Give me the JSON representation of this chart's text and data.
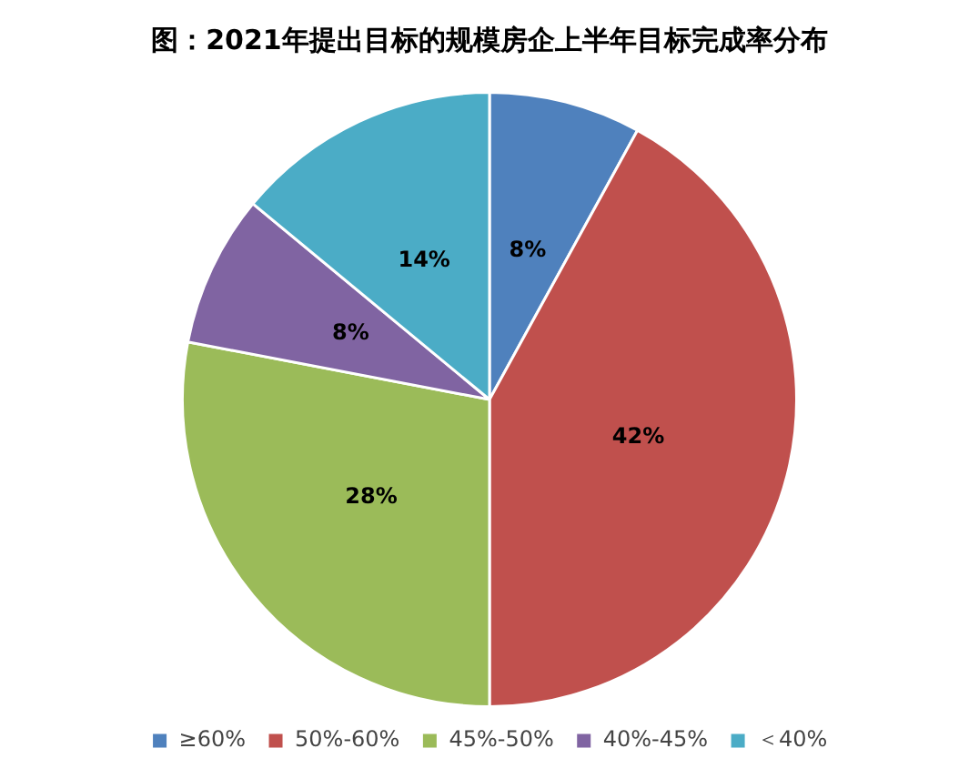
{
  "chart_data": {
    "type": "pie",
    "title": "图：2021年提出目标的规模房企上半年目标完成率分布",
    "categories": [
      "≥60%",
      "50%-60%",
      "45%-50%",
      "40%-45%",
      "＜40%"
    ],
    "values": [
      8,
      42,
      28,
      8,
      14
    ],
    "value_labels": [
      "8%",
      "42%",
      "28%",
      "8%",
      "14%"
    ],
    "colors": [
      "#4f81bd",
      "#c0504d",
      "#9bbb59",
      "#8064a2",
      "#4bacc6"
    ],
    "legend": "bottom"
  }
}
